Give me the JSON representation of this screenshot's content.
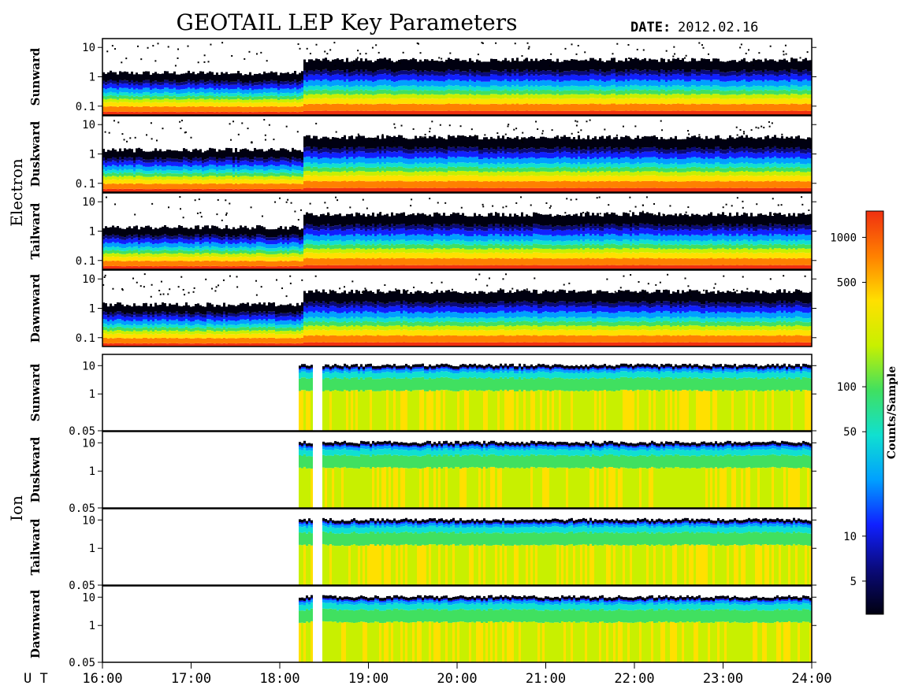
{
  "title": "GEOTAIL LEP Key Parameters",
  "date_label": "DATE:",
  "date_value": "2012.02.16",
  "ut_label": "U T",
  "groups": [
    {
      "name": "Electron",
      "yticks": [
        "10",
        "1",
        "0.1"
      ],
      "ytick_values": [
        10,
        1,
        0.1
      ],
      "yrange": [
        0.05,
        20
      ]
    },
    {
      "name": "Ion",
      "yticks": [
        "10",
        "1",
        "0.05"
      ],
      "ytick_values": [
        10,
        1,
        0.05
      ],
      "yrange": [
        0.05,
        25
      ]
    }
  ],
  "colorbar": {
    "label": "Counts/Sample",
    "scale": "log",
    "range": [
      3,
      1500
    ],
    "ticks": [
      "1000",
      "500",
      "100",
      "50",
      "10",
      "5"
    ],
    "tick_values": [
      1000,
      500,
      100,
      50,
      10,
      5
    ],
    "colors": [
      "#000010",
      "#0a0a7a",
      "#1020ff",
      "#00a0ff",
      "#10e0d0",
      "#40e060",
      "#c8f000",
      "#ffe000",
      "#ff8000",
      "#f03010"
    ]
  },
  "chart_data": {
    "type": "heatmap",
    "title": "GEOTAIL LEP Key Parameters",
    "date": "2012.02.16",
    "x": [
      "16:00",
      "17:00",
      "18:00",
      "19:00",
      "20:00",
      "21:00",
      "22:00",
      "23:00",
      "24:00"
    ],
    "xrange": [
      "16:00",
      "24:00"
    ],
    "y_scale": "log",
    "panels": [
      {
        "group": "Electron",
        "name": "Sunward"
      },
      {
        "group": "Electron",
        "name": "Duskward"
      },
      {
        "group": "Electron",
        "name": "Tailward"
      },
      {
        "group": "Electron",
        "name": "Dawnward"
      },
      {
        "group": "Ion",
        "name": "Sunward"
      },
      {
        "group": "Ion",
        "name": "Duskward"
      },
      {
        "group": "Ion",
        "name": "Tailward"
      },
      {
        "group": "Ion",
        "name": "Dawnward"
      }
    ],
    "colorbar_label": "Counts/Sample",
    "colorbar_range": [
      3,
      1500
    ]
  }
}
